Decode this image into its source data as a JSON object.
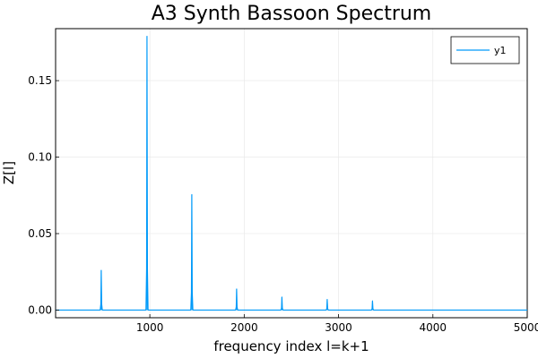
{
  "chart_data": {
    "type": "line",
    "title": "A3 Synth Bassoon Spectrum",
    "xlabel": "frequency index l=k+1",
    "ylabel": "Z[l]",
    "xlim": [
      1,
      5000
    ],
    "ylim": [
      -0.005,
      0.184
    ],
    "xticks": [
      1000,
      2000,
      3000,
      4000,
      5000
    ],
    "xtick_labels": [
      "1000",
      "2000",
      "3000",
      "4000",
      "5000"
    ],
    "yticks": [
      0.0,
      0.05,
      0.1,
      0.15
    ],
    "ytick_labels": [
      "0.00",
      "0.05",
      "0.10",
      "0.15"
    ],
    "grid": true,
    "legend_position": "top-right",
    "series": [
      {
        "name": "y1",
        "color": "#009af9",
        "baseline": 0,
        "peaks": [
          {
            "x": 485,
            "y": 0.026
          },
          {
            "x": 970,
            "y": 0.179
          },
          {
            "x": 1445,
            "y": 0.0755
          },
          {
            "x": 1920,
            "y": 0.0138
          },
          {
            "x": 2400,
            "y": 0.0085
          },
          {
            "x": 2880,
            "y": 0.007
          },
          {
            "x": 3360,
            "y": 0.006
          }
        ]
      }
    ]
  }
}
